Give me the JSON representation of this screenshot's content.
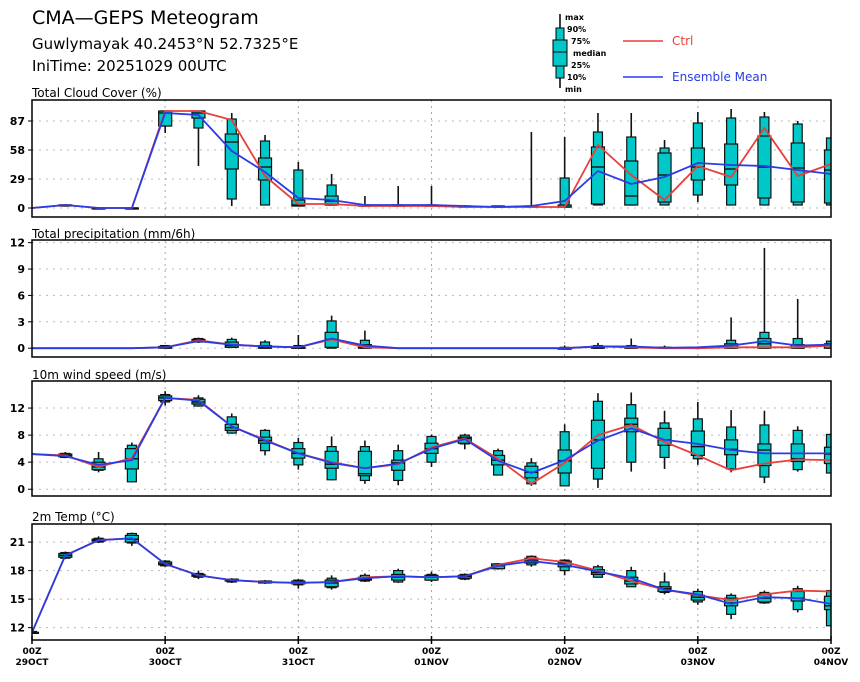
{
  "header": {
    "title": "CMA—GEPS Meteogram",
    "location": "Guwlymayak 40.2453°N 52.7325°E",
    "init_time": "IniTime: 20251029 00UTC"
  },
  "legend": {
    "box_labels": [
      "max",
      "90%",
      "75%",
      "median",
      "25%",
      "10%",
      "min"
    ],
    "ctrl": "Ctrl",
    "mean": "Ensemble Mean"
  },
  "colors": {
    "ctrl": "#e8403c",
    "mean": "#2a3ce6",
    "box": "#00c8c8"
  },
  "chart_data": {
    "type": "line",
    "time_step_hours": 6,
    "x_labels": [
      {
        "index": 0,
        "top": "00Z",
        "bottom": "29OCT"
      },
      {
        "index": 4,
        "top": "00Z",
        "bottom": "30OCT"
      },
      {
        "index": 8,
        "top": "00Z",
        "bottom": "31OCT"
      },
      {
        "index": 12,
        "top": "00Z",
        "bottom": "01NOV"
      },
      {
        "index": 16,
        "top": "00Z",
        "bottom": "02NOV"
      },
      {
        "index": 20,
        "top": "00Z",
        "bottom": "03NOV"
      },
      {
        "index": 24,
        "top": "00Z",
        "bottom": "04NOV"
      }
    ],
    "panels": [
      {
        "title": "Total Cloud Cover (%)",
        "ylim": [
          -9,
          108
        ],
        "yticks": [
          0,
          29,
          58,
          87
        ],
        "ctrl": [
          0,
          3,
          0,
          0,
          97,
          97,
          88,
          32,
          4,
          4,
          2,
          2,
          2,
          1,
          1,
          1,
          1,
          63,
          33,
          8,
          42,
          31,
          80,
          32,
          44
        ],
        "mean": [
          0,
          3,
          0,
          0,
          95,
          93,
          57,
          36,
          10,
          8,
          3,
          3,
          3,
          2,
          1,
          2,
          7,
          37,
          24,
          31,
          45,
          43,
          42,
          38,
          34
        ],
        "boxes": [
          null,
          [
            2,
            2,
            2,
            3,
            3,
            3,
            4
          ],
          [
            0,
            0,
            0,
            0,
            0,
            0,
            1
          ],
          [
            0,
            0,
            0,
            0,
            0,
            0,
            1
          ],
          [
            75,
            82,
            82,
            95,
            97,
            97,
            97
          ],
          [
            42,
            80,
            90,
            95,
            97,
            97,
            97
          ],
          [
            2,
            9,
            39,
            66,
            74,
            89,
            95
          ],
          [
            3,
            3,
            28,
            41,
            50,
            67,
            73
          ],
          [
            2,
            2,
            2,
            3,
            8,
            38,
            46
          ],
          [
            3,
            3,
            3,
            7,
            12,
            23,
            34
          ],
          [
            2,
            2,
            2,
            2,
            3,
            3,
            12
          ],
          [
            2,
            2,
            2,
            2,
            3,
            3,
            22
          ],
          [
            2,
            2,
            2,
            2,
            3,
            3,
            22
          ],
          [
            1,
            1,
            1,
            1,
            2,
            2,
            3
          ],
          [
            1,
            1,
            1,
            1,
            2,
            2,
            2
          ],
          [
            1,
            1,
            1,
            1,
            2,
            2,
            76
          ],
          [
            1,
            1,
            1,
            1,
            3,
            30,
            71
          ],
          [
            3,
            3,
            4,
            41,
            61,
            76,
            95
          ],
          [
            3,
            3,
            3,
            12,
            47,
            71,
            95
          ],
          [
            3,
            3,
            6,
            33,
            55,
            60,
            68
          ],
          [
            6,
            13,
            28,
            41,
            60,
            85,
            96
          ],
          [
            3,
            3,
            23,
            39,
            64,
            90,
            99
          ],
          [
            3,
            3,
            10,
            41,
            72,
            91,
            96
          ],
          [
            3,
            3,
            6,
            40,
            65,
            84,
            87
          ],
          [
            3,
            3,
            5,
            38,
            58,
            70,
            70
          ]
        ]
      },
      {
        "title": "Total precipitation (mm/6h)",
        "ylim": [
          -1,
          12.3
        ],
        "yticks": [
          0,
          3,
          6,
          9,
          12
        ],
        "ctrl": [
          0,
          0,
          0,
          0,
          0.1,
          0.9,
          0.4,
          0.2,
          0.1,
          1.0,
          0.1,
          0,
          0,
          0,
          0,
          0,
          0,
          0.2,
          0.1,
          0,
          0,
          0.1,
          0.1,
          0.1,
          0.3
        ],
        "mean": [
          0,
          0,
          0,
          0,
          0.1,
          0.8,
          0.4,
          0.2,
          0.1,
          1.1,
          0.3,
          0,
          0,
          0,
          0,
          0,
          0,
          0.2,
          0.2,
          0.05,
          0.1,
          0.3,
          0.8,
          0.3,
          0.4
        ],
        "boxes": [
          null,
          null,
          null,
          null,
          [
            0,
            0,
            0,
            0.1,
            0.2,
            0.3,
            0.3
          ],
          [
            0.6,
            0.7,
            0.8,
            0.9,
            1.0,
            1.1,
            1.2
          ],
          [
            0,
            0.1,
            0.1,
            0.3,
            0.7,
            1.0,
            1.2
          ],
          [
            0,
            0,
            0,
            0.1,
            0.3,
            0.7,
            0.9
          ],
          [
            0,
            0,
            0,
            0,
            0.1,
            0.3,
            1.5
          ],
          [
            0,
            0,
            0.1,
            1.0,
            1.8,
            3.1,
            3.7
          ],
          [
            0,
            0,
            0,
            0.1,
            0.4,
            0.9,
            2.0
          ],
          null,
          null,
          null,
          null,
          null,
          [
            0,
            0,
            0,
            0,
            0,
            0.1,
            0.3
          ],
          [
            0,
            0,
            0,
            0.1,
            0.2,
            0.3,
            0.6
          ],
          [
            0,
            0,
            0,
            0.1,
            0.2,
            0.3,
            1.1
          ],
          [
            0,
            0,
            0,
            0,
            0.1,
            0.1,
            0.3
          ],
          [
            0,
            0,
            0,
            0,
            0.1,
            0.1,
            0.2
          ],
          [
            0,
            0,
            0,
            0.1,
            0.5,
            0.9,
            3.5
          ],
          [
            0,
            0,
            0,
            0.5,
            1.1,
            1.8,
            11.4
          ],
          [
            0,
            0,
            0,
            0.1,
            0.4,
            1.1,
            5.6
          ],
          [
            0,
            0,
            0,
            0.3,
            0.5,
            0.8,
            0.8
          ]
        ]
      },
      {
        "title": "10m wind speed (m/s)",
        "ylim": [
          -1,
          16
        ],
        "yticks": [
          0,
          4,
          8,
          12
        ],
        "ctrl": [
          5.2,
          5.0,
          3.3,
          4.6,
          13.5,
          13.2,
          9.3,
          7.3,
          5.3,
          4.0,
          3.1,
          3.7,
          6.2,
          7.5,
          4.5,
          0.8,
          3.9,
          8.0,
          9.5,
          7.0,
          5.0,
          2.8,
          3.8,
          4.4,
          4.3
        ],
        "mean": [
          5.2,
          4.9,
          3.6,
          4.3,
          13.5,
          13.1,
          9.3,
          7.2,
          5.3,
          3.9,
          3.1,
          3.8,
          6.0,
          7.4,
          4.2,
          2.4,
          4.3,
          7.2,
          9.0,
          7.3,
          6.7,
          5.8,
          5.3,
          5.3,
          5.3
        ],
        "boxes": [
          null,
          [
            4.6,
            4.7,
            4.8,
            5.0,
            5.2,
            5.3,
            5.5
          ],
          [
            2.5,
            2.8,
            2.9,
            3.3,
            4.0,
            4.5,
            5.5
          ],
          [
            1.0,
            1.1,
            3.0,
            4.5,
            6.0,
            6.5,
            6.9
          ],
          [
            12.4,
            12.9,
            13.1,
            13.5,
            13.8,
            14.0,
            14.5
          ],
          [
            12.2,
            12.3,
            12.6,
            12.9,
            13.3,
            13.5,
            13.9
          ],
          [
            8.2,
            8.3,
            8.7,
            9.1,
            9.6,
            10.7,
            11.2
          ],
          [
            5.0,
            5.7,
            6.8,
            7.2,
            7.7,
            8.7,
            8.9
          ],
          [
            2.9,
            3.6,
            4.6,
            5.3,
            6.0,
            6.9,
            7.6
          ],
          [
            1.3,
            1.4,
            3.1,
            3.7,
            5.6,
            6.3,
            7.8
          ],
          [
            0.8,
            1.3,
            2.0,
            2.3,
            5.6,
            6.3,
            7.2
          ],
          [
            0.6,
            1.3,
            2.8,
            3.9,
            4.3,
            5.7,
            6.6
          ],
          [
            3.3,
            4.0,
            5.3,
            6.0,
            6.8,
            7.8,
            8.1
          ],
          [
            5.9,
            6.7,
            6.8,
            7.5,
            7.7,
            8.0,
            8.2
          ],
          [
            2.1,
            2.1,
            3.6,
            4.3,
            5.0,
            5.7,
            6.0
          ],
          [
            0.5,
            0.8,
            1.7,
            2.5,
            3.4,
            3.9,
            4.6
          ],
          [
            0.5,
            0.5,
            2.4,
            4.2,
            5.8,
            8.5,
            9.6
          ],
          [
            0.2,
            1.5,
            3.1,
            7.3,
            10.2,
            13.0,
            14.2
          ],
          [
            2.6,
            4.0,
            8.5,
            9.6,
            10.5,
            12.5,
            14.3
          ],
          [
            3.0,
            4.7,
            6.5,
            7.3,
            9.0,
            9.8,
            11.6
          ],
          [
            3.6,
            4.5,
            5.0,
            6.3,
            8.6,
            10.4,
            12.9
          ],
          [
            2.5,
            3.0,
            5.1,
            5.9,
            7.3,
            9.2,
            11.7
          ],
          [
            0.9,
            1.8,
            3.5,
            5.8,
            6.7,
            9.5,
            11.6
          ],
          [
            2.6,
            2.9,
            4.1,
            4.5,
            6.7,
            8.7,
            9.3
          ],
          [
            2.4,
            2.4,
            3.8,
            5.2,
            6.2,
            8.1,
            8.1
          ]
        ]
      },
      {
        "title": "2m Temp (°C)",
        "ylim": [
          10.7,
          22.9
        ],
        "yticks": [
          12,
          15,
          18,
          21
        ],
        "ctrl": [
          11.5,
          19.6,
          21.2,
          21.4,
          18.7,
          17.5,
          17.0,
          16.8,
          16.7,
          16.8,
          17.3,
          17.4,
          17.3,
          17.4,
          18.6,
          19.3,
          18.9,
          18.0,
          16.9,
          16.0,
          15.4,
          14.9,
          15.5,
          15.9,
          15.8
        ],
        "mean": [
          11.5,
          19.6,
          21.2,
          21.4,
          18.7,
          17.5,
          17.0,
          16.8,
          16.7,
          16.8,
          17.2,
          17.4,
          17.3,
          17.4,
          18.5,
          19.0,
          18.6,
          17.9,
          17.2,
          16.0,
          15.5,
          14.5,
          15.2,
          15.1,
          14.5
        ],
        "boxes": [
          [
            11.4,
            11.4,
            11.5,
            11.5,
            11.5,
            11.6,
            11.6
          ],
          [
            19.2,
            19.3,
            19.4,
            19.6,
            19.8,
            19.9,
            20.0
          ],
          [
            20.9,
            21.0,
            21.1,
            21.2,
            21.3,
            21.4,
            21.6
          ],
          [
            20.6,
            20.9,
            21.0,
            21.3,
            21.7,
            21.9,
            22.0
          ],
          [
            18.4,
            18.5,
            18.6,
            18.7,
            18.9,
            19.0,
            19.1
          ],
          [
            17.1,
            17.3,
            17.4,
            17.5,
            17.6,
            17.7,
            18.0
          ],
          [
            16.7,
            16.8,
            16.9,
            17.0,
            17.1,
            17.1,
            17.2
          ],
          [
            16.6,
            16.7,
            16.7,
            16.8,
            16.9,
            16.9,
            17.0
          ],
          [
            16.1,
            16.5,
            16.6,
            16.7,
            16.9,
            17.0,
            17.1
          ],
          [
            16.0,
            16.2,
            16.3,
            16.7,
            17.0,
            17.2,
            17.5
          ],
          [
            16.8,
            16.9,
            17.0,
            17.1,
            17.3,
            17.5,
            17.7
          ],
          [
            16.7,
            16.8,
            17.0,
            17.3,
            17.6,
            18.0,
            18.2
          ],
          [
            16.8,
            17.0,
            17.0,
            17.3,
            17.5,
            17.6,
            17.9
          ],
          [
            17.0,
            17.1,
            17.2,
            17.4,
            17.5,
            17.6,
            17.7
          ],
          [
            18.1,
            18.2,
            18.2,
            18.5,
            18.7,
            18.7,
            18.8
          ],
          [
            18.4,
            18.6,
            18.8,
            19.1,
            19.3,
            19.5,
            19.6
          ],
          [
            17.5,
            18.0,
            18.4,
            18.8,
            19.0,
            19.1,
            19.2
          ],
          [
            17.3,
            17.3,
            17.6,
            17.8,
            18.1,
            18.4,
            18.6
          ],
          [
            16.3,
            16.3,
            16.6,
            16.9,
            17.3,
            18.0,
            18.4
          ],
          [
            15.5,
            15.7,
            15.8,
            16.1,
            16.3,
            16.8,
            17.8
          ],
          [
            14.4,
            14.7,
            14.9,
            15.2,
            15.4,
            15.8,
            16.1
          ],
          [
            12.9,
            13.4,
            14.3,
            14.6,
            15.1,
            15.4,
            15.6
          ],
          [
            14.5,
            14.6,
            14.7,
            15.1,
            15.5,
            15.7,
            15.9
          ],
          [
            13.6,
            13.9,
            14.8,
            15.1,
            15.8,
            16.1,
            16.4
          ],
          [
            12.1,
            12.2,
            13.9,
            14.3,
            15.3,
            15.9,
            15.9
          ]
        ]
      }
    ]
  }
}
